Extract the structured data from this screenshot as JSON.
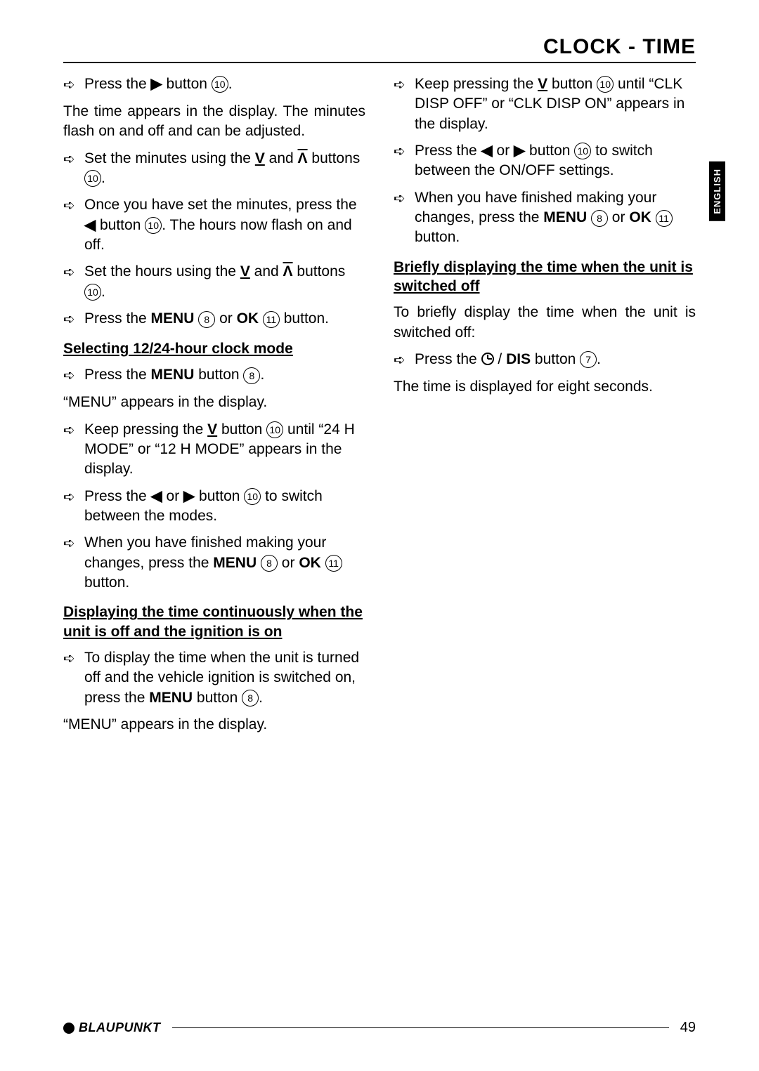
{
  "header": "CLOCK - TIME",
  "language_tab": "ENGLISH",
  "page_number": "49",
  "brand": "BLAUPUNKT",
  "refs": {
    "r7": "7",
    "r8": "8",
    "r10": "10",
    "r11": "11"
  },
  "symbols": {
    "right": "▶",
    "left": "◀",
    "down": "⨟",
    "up": "⨞",
    "down_bar": "V",
    "up_bar": "Λ"
  },
  "left": {
    "s1_a": "Press the ",
    "s1_b": " button ",
    "s1_c": ".",
    "p1": "The time appears in the display. The minutes flash on and off and can be adjusted.",
    "s2_a": "Set the minutes using the ",
    "s2_b": " and ",
    "s2_c": " buttons ",
    "s2_d": ".",
    "s3_a": "Once you have set the minutes, press the ",
    "s3_b": " button ",
    "s3_c": ". The hours now flash on and off.",
    "s4_a": "Set the hours using the ",
    "s4_b": " and ",
    "s4_c": " buttons ",
    "s4_d": ".",
    "s5_a": "Press the ",
    "s5_menu": "MENU",
    "s5_b": " ",
    "s5_or": " or ",
    "s5_ok": "OK",
    "s5_c": " button.",
    "h1": "Selecting 12/24-hour clock mode",
    "s6_a": "Press the ",
    "s6_menu": "MENU",
    "s6_b": " button ",
    "s6_c": ".",
    "p2": "“MENU” appears in the display.",
    "s7_a": "Keep pressing the ",
    "s7_b": " button ",
    "s7_c": " until “24 H MODE” or “12 H MODE” appears in the display.",
    "s8_a": "Press the ",
    "s8_or": " or ",
    "s8_b": " button ",
    "s8_c": " to switch between the modes.",
    "s9_a": "When you have finished making your changes, press the ",
    "s9_menu": "MENU",
    "s9_b": " ",
    "s9_or": " or ",
    "s9_ok": "OK",
    "s9_c": " button.",
    "h2": "Displaying the time continuously when the unit is off and the ignition is on",
    "s10_a": "To display the time when the unit is turned off and the vehicle ignition is switched on, press the ",
    "s10_menu": "MENU",
    "s10_b": " button ",
    "s10_c": ".",
    "p3": "“MENU” appears in the display."
  },
  "right": {
    "s1_a": "Keep pressing the ",
    "s1_b": " button ",
    "s1_c": " until “CLK DISP OFF” or “CLK DISP ON” appears in the display.",
    "s2_a": "Press the ",
    "s2_or": " or ",
    "s2_b": " button ",
    "s2_c": " to switch between the ON/OFF settings.",
    "s3_a": "When you have finished making your changes, press the ",
    "s3_menu": "MENU",
    "s3_b": " ",
    "s3_or": " or ",
    "s3_ok": "OK",
    "s3_c": " button.",
    "h1": "Briefly displaying the time when the unit is switched off",
    "p1": "To briefly display the time when the unit is switched off:",
    "s4_a": "Press the ",
    "s4_sep": " / ",
    "s4_dis": "DIS",
    "s4_b": " button ",
    "s4_c": ".",
    "p2": "The time is displayed for eight seconds."
  }
}
